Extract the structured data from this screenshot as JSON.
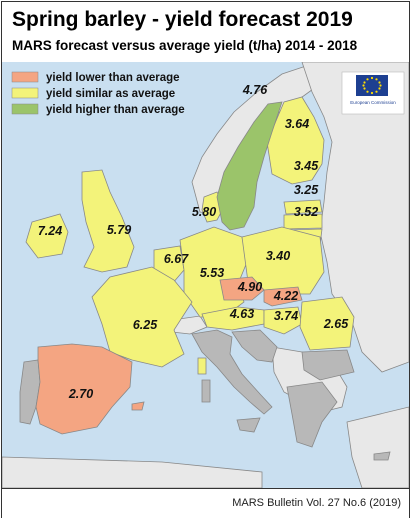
{
  "title": "Spring barley - yield forecast 2019",
  "subtitle": "MARS forecast versus average yield (t/ha) 2014 - 2018",
  "legend": [
    {
      "label": "yield lower than average",
      "color": "#f4a582"
    },
    {
      "label": "yield similar as average",
      "color": "#f3f37a"
    },
    {
      "label": "yield higher than average",
      "color": "#9bc46a"
    }
  ],
  "colors": {
    "sea": "#c9dff0",
    "non_eu": "#e8e8e8",
    "no_forecast": "#b8b8b8"
  },
  "logo": {
    "text": "European Commission"
  },
  "map_labels": {
    "finland": "3.64",
    "sweden": "4.76",
    "estonia": "3.45",
    "latvia": "3.25",
    "lithuania": "3.52",
    "denmark": "5.80",
    "ireland": "7.24",
    "uk": "5.79",
    "benelux": "6.67",
    "germany": "5.53",
    "poland": "3.40",
    "czechia": "4.90",
    "slovakia": "4.22",
    "austria": "4.63",
    "hungary": "3.74",
    "romania": "2.65",
    "france": "6.25",
    "spain": "2.70"
  },
  "footer": "MARS Bulletin Vol. 27 No.6 (2019)"
}
